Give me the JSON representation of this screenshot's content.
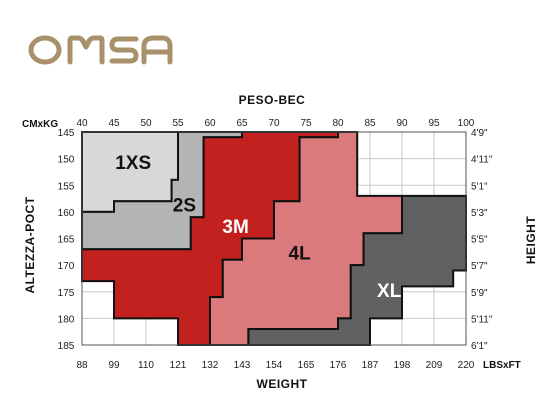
{
  "brand": {
    "logo_text": "OMSA",
    "logo_color": "#a8916a"
  },
  "chart_data": {
    "type": "area",
    "title": "PESO-BEC",
    "top_axis": {
      "unit_label": "CMxKG",
      "values": [
        40,
        45,
        50,
        55,
        60,
        65,
        70,
        75,
        80,
        85,
        90,
        95,
        100
      ],
      "range": [
        40,
        100
      ]
    },
    "bottom_axis": {
      "label": "WEIGHT",
      "unit_label": "LBSxFT",
      "values": [
        "88",
        "99",
        "110",
        "121",
        "132",
        "143",
        "154",
        "165",
        "176",
        "187",
        "198",
        "209",
        "220"
      ]
    },
    "left_axis": {
      "label": "ALTEZZA-POCT",
      "values": [
        145,
        150,
        155,
        160,
        165,
        170,
        175,
        180,
        185
      ],
      "range": [
        145,
        185
      ]
    },
    "right_axis": {
      "label": "HEIGHT",
      "values": [
        "4'9\"",
        "4'11\"",
        "5'1\"",
        "5'3\"",
        "5'5\"",
        "5'7\"",
        "5'9\"",
        "5'11\"",
        "6'1\""
      ]
    },
    "grid": true,
    "series": [
      {
        "name": "1XS",
        "color": "#d8d8d8",
        "region": [
          [
            40,
            145
          ],
          [
            55,
            145
          ],
          [
            55,
            154
          ],
          [
            54,
            154
          ],
          [
            54,
            158
          ],
          [
            45,
            158
          ],
          [
            45,
            160
          ],
          [
            40,
            160
          ]
        ],
        "label_pos": [
          48,
          151
        ]
      },
      {
        "name": "2S",
        "color": "#b4b4b4",
        "region": [
          [
            55,
            145
          ],
          [
            55,
            154
          ],
          [
            54,
            154
          ],
          [
            54,
            158
          ],
          [
            45,
            158
          ],
          [
            45,
            160
          ],
          [
            40,
            160
          ],
          [
            40,
            167
          ],
          [
            57,
            167
          ],
          [
            57,
            161
          ],
          [
            59,
            161
          ],
          [
            59,
            146
          ],
          [
            65,
            146
          ],
          [
            65,
            145
          ]
        ],
        "label_pos": [
          56,
          159
        ]
      },
      {
        "name": "3M",
        "color": "#c3211f",
        "region": [
          [
            65,
            145
          ],
          [
            65,
            146
          ],
          [
            59,
            146
          ],
          [
            59,
            161
          ],
          [
            57,
            161
          ],
          [
            57,
            167
          ],
          [
            40,
            167
          ],
          [
            40,
            173
          ],
          [
            45,
            173
          ],
          [
            45,
            180
          ],
          [
            55,
            180
          ],
          [
            55,
            185
          ],
          [
            60,
            185
          ],
          [
            60,
            176
          ],
          [
            62,
            176
          ],
          [
            62,
            169
          ],
          [
            65,
            169
          ],
          [
            65,
            165
          ],
          [
            70,
            165
          ],
          [
            70,
            158
          ],
          [
            74,
            158
          ],
          [
            74,
            146
          ],
          [
            80,
            146
          ],
          [
            80,
            145
          ]
        ],
        "label_pos": [
          64,
          163
        ]
      },
      {
        "name": "4L",
        "color": "#db7a7c",
        "region": [
          [
            80,
            145
          ],
          [
            80,
            146
          ],
          [
            74,
            146
          ],
          [
            74,
            158
          ],
          [
            70,
            158
          ],
          [
            70,
            165
          ],
          [
            65,
            165
          ],
          [
            65,
            169
          ],
          [
            62,
            169
          ],
          [
            62,
            176
          ],
          [
            60,
            176
          ],
          [
            60,
            185
          ],
          [
            66,
            185
          ],
          [
            66,
            182
          ],
          [
            80,
            182
          ],
          [
            80,
            180
          ],
          [
            82,
            180
          ],
          [
            82,
            170
          ],
          [
            84,
            170
          ],
          [
            84,
            164
          ],
          [
            90,
            164
          ],
          [
            90,
            157
          ],
          [
            83,
            157
          ],
          [
            83,
            145
          ]
        ],
        "label_pos": [
          74,
          168
        ]
      },
      {
        "name": "XL",
        "color": "#616161",
        "region": [
          [
            90,
            157
          ],
          [
            90,
            164
          ],
          [
            84,
            164
          ],
          [
            84,
            170
          ],
          [
            82,
            170
          ],
          [
            82,
            180
          ],
          [
            80,
            180
          ],
          [
            80,
            182
          ],
          [
            66,
            182
          ],
          [
            66,
            185
          ],
          [
            85,
            185
          ],
          [
            85,
            180
          ],
          [
            90,
            180
          ],
          [
            90,
            174
          ],
          [
            98,
            174
          ],
          [
            98,
            171
          ],
          [
            100,
            171
          ],
          [
            100,
            157
          ]
        ],
        "label_pos": [
          88,
          175
        ]
      }
    ]
  }
}
